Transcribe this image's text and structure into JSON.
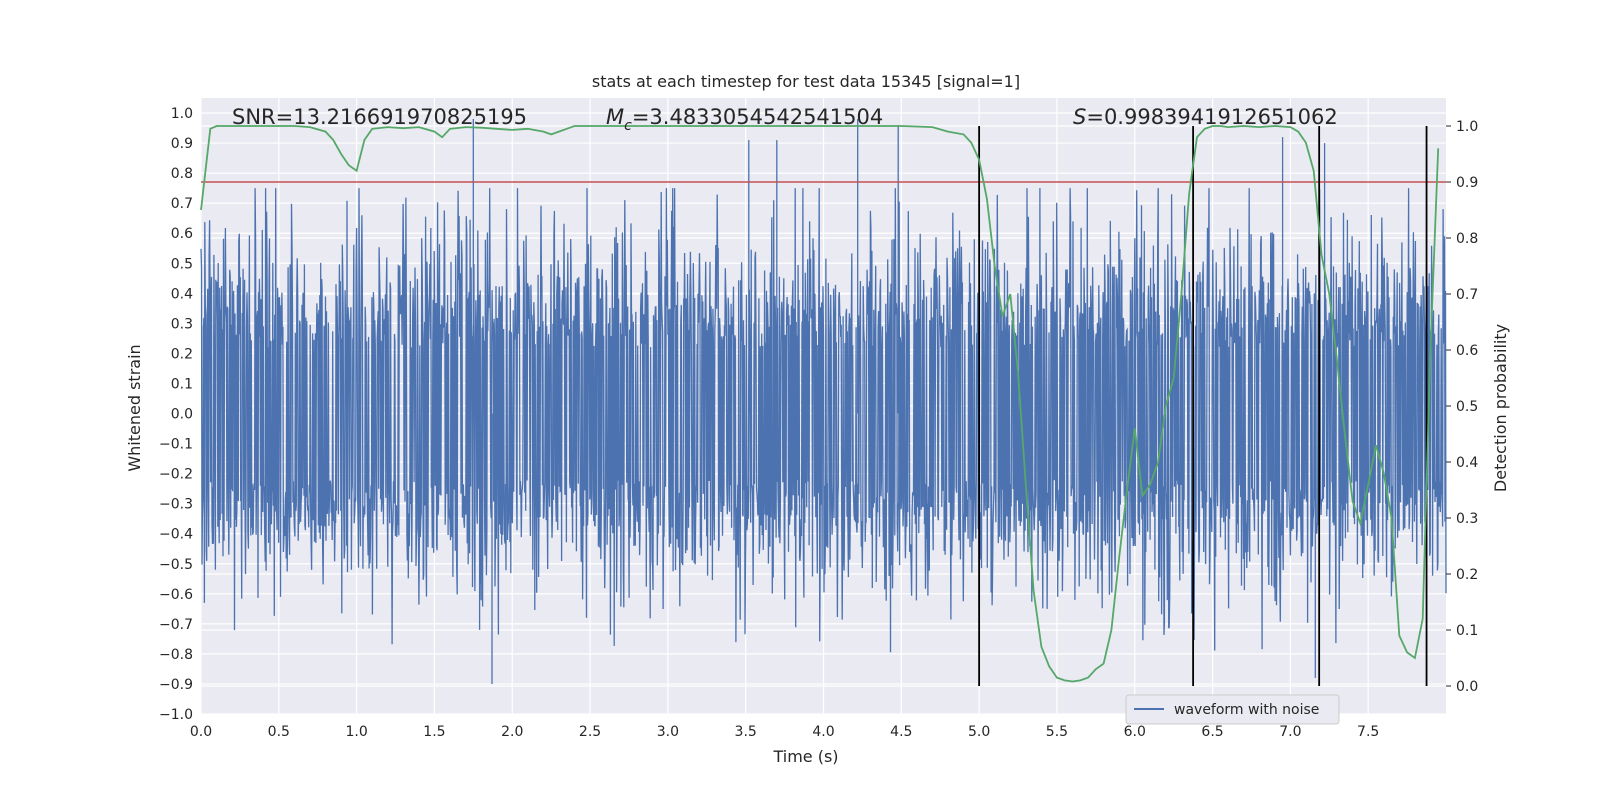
{
  "chart_data": {
    "type": "line",
    "title": "stats at each timestep for test data 15345 [signal=1]",
    "xlabel": "Time (s)",
    "ylabel": "Whitened strain",
    "y2label": "Detection probability",
    "xlim": [
      0,
      8
    ],
    "ylim": [
      -1.0,
      1.05
    ],
    "y2lim": [
      -0.05,
      1.05
    ],
    "xticks": [
      "0.0",
      "0.5",
      "1.0",
      "1.5",
      "2.0",
      "2.5",
      "3.0",
      "3.5",
      "4.0",
      "4.5",
      "5.0",
      "5.5",
      "6.0",
      "6.5",
      "7.0",
      "7.5"
    ],
    "yticks": [
      "−1.0",
      "−0.9",
      "−0.8",
      "−0.7",
      "−0.6",
      "−0.5",
      "−0.4",
      "−0.3",
      "−0.2",
      "−0.1",
      "0.0",
      "0.1",
      "0.2",
      "0.3",
      "0.4",
      "0.5",
      "0.6",
      "0.7",
      "0.8",
      "0.9",
      "1.0"
    ],
    "y2ticks": [
      "0.0",
      "0.1",
      "0.2",
      "0.3",
      "0.4",
      "0.5",
      "0.6",
      "0.7",
      "0.8",
      "0.9",
      "1.0"
    ],
    "grid": true,
    "annotations": {
      "snr": "SNR=13.216691970825195",
      "mc_symbol": "M",
      "mc_sub": "c",
      "mc_value": "=3.4833054542541504",
      "s_symbol": "S",
      "s_value": "=0.9983941912651062"
    },
    "legend": {
      "label": "waveform with noise",
      "placement": "lower-right"
    },
    "threshold": {
      "y2": 0.9,
      "color": "#c44e52"
    },
    "vertical_lines": [
      5.0,
      6.375,
      7.185,
      7.875
    ],
    "colors": {
      "strain": "#4c72b0",
      "probability": "#55a868",
      "threshold": "#c44e52",
      "vlines": "#000000",
      "axes_bg": "#eaeaf2"
    },
    "probability": {
      "x": [
        0.0,
        0.06,
        0.1,
        0.2,
        0.3,
        0.4,
        0.5,
        0.6,
        0.7,
        0.8,
        0.85,
        0.9,
        0.95,
        1.0,
        1.05,
        1.1,
        1.2,
        1.3,
        1.4,
        1.5,
        1.55,
        1.6,
        1.7,
        1.8,
        1.9,
        2.0,
        2.1,
        2.2,
        2.25,
        2.3,
        2.35,
        2.4,
        2.5,
        2.6,
        2.8,
        3.0,
        3.5,
        4.0,
        4.5,
        4.7,
        4.8,
        4.9,
        4.95,
        5.0,
        5.05,
        5.1,
        5.15,
        5.2,
        5.25,
        5.3,
        5.35,
        5.4,
        5.45,
        5.5,
        5.55,
        5.6,
        5.65,
        5.7,
        5.75,
        5.8,
        5.85,
        5.9,
        5.95,
        6.0,
        6.05,
        6.1,
        6.15,
        6.2,
        6.25,
        6.3,
        6.35,
        6.4,
        6.45,
        6.5,
        6.55,
        6.6,
        6.7,
        6.8,
        6.9,
        7.0,
        7.05,
        7.1,
        7.15,
        7.2,
        7.25,
        7.3,
        7.35,
        7.4,
        7.45,
        7.5,
        7.55,
        7.6,
        7.65,
        7.7,
        7.75,
        7.8,
        7.85,
        7.9,
        7.95
      ],
      "y": [
        0.85,
        0.995,
        1.0,
        1.0,
        1.0,
        1.0,
        1.0,
        1.0,
        0.998,
        0.99,
        0.975,
        0.95,
        0.93,
        0.92,
        0.975,
        0.995,
        0.998,
        0.996,
        0.998,
        0.99,
        0.98,
        0.995,
        0.998,
        0.997,
        0.995,
        0.993,
        0.995,
        0.99,
        0.985,
        0.99,
        0.995,
        1.0,
        1.0,
        1.0,
        1.0,
        1.0,
        1.0,
        1.0,
        1.0,
        0.998,
        0.99,
        0.985,
        0.97,
        0.94,
        0.87,
        0.75,
        0.66,
        0.7,
        0.56,
        0.36,
        0.17,
        0.07,
        0.035,
        0.015,
        0.01,
        0.008,
        0.01,
        0.015,
        0.03,
        0.04,
        0.1,
        0.23,
        0.35,
        0.46,
        0.34,
        0.36,
        0.4,
        0.5,
        0.55,
        0.7,
        0.88,
        0.98,
        0.995,
        1.0,
        1.0,
        0.998,
        1.0,
        0.998,
        1.0,
        0.998,
        0.99,
        0.97,
        0.92,
        0.77,
        0.7,
        0.58,
        0.45,
        0.33,
        0.29,
        0.36,
        0.43,
        0.38,
        0.3,
        0.09,
        0.06,
        0.05,
        0.12,
        0.6,
        0.96
      ]
    },
    "strain": {
      "description": "dense whitened-strain noise series sampled across 0–8 s",
      "baseline_amplitude": 0.4,
      "max_spike": 0.98,
      "min_spike": -0.9
    }
  }
}
